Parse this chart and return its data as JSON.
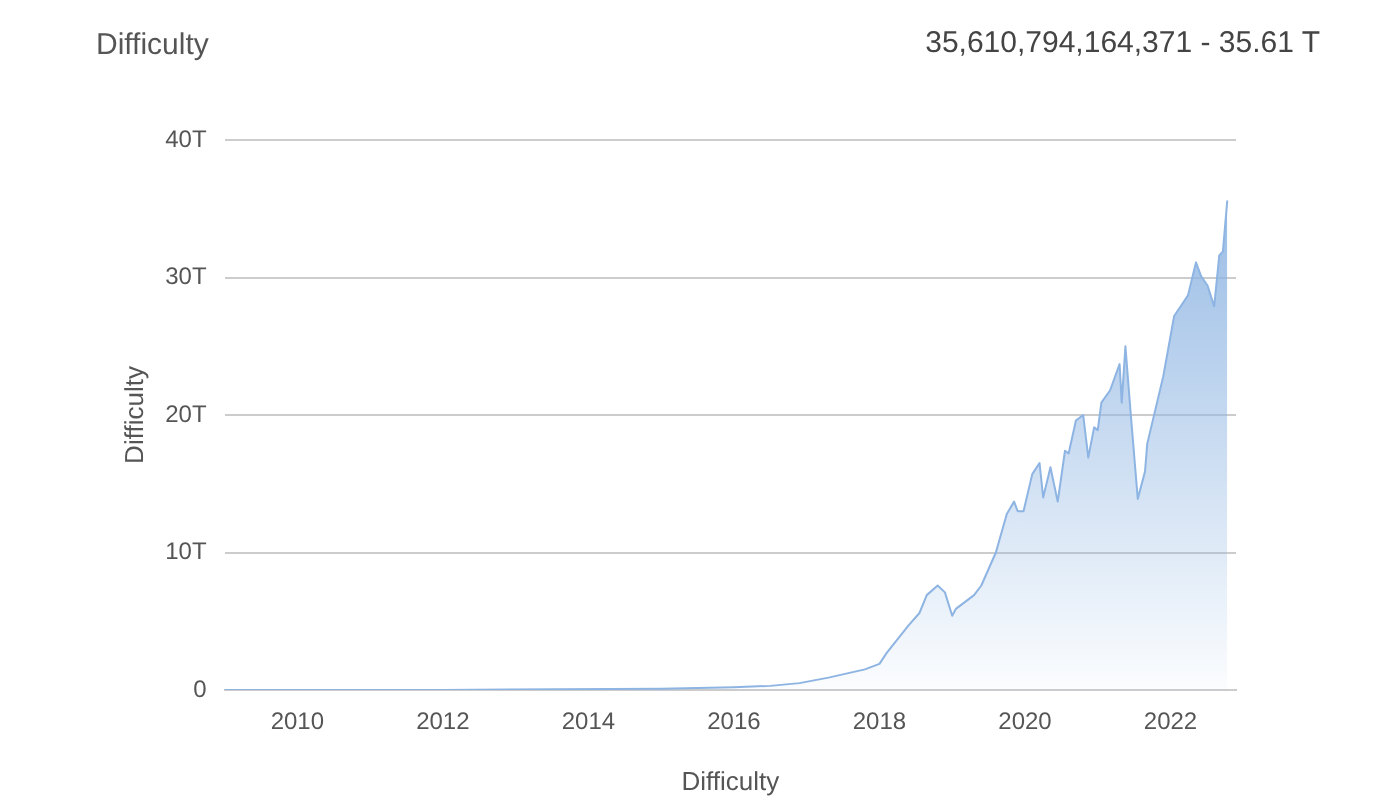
{
  "chart_data": {
    "type": "area",
    "title": "Difficulty",
    "xlabel": "Difficulty",
    "ylabel": "Difficulty",
    "annotations": [
      "35,610,794,164,371 - 35.61 T"
    ],
    "xlim": [
      2009,
      2022.9
    ],
    "xticks": [
      2010,
      2012,
      2014,
      2016,
      2018,
      2020,
      2022
    ],
    "ylim": [
      0,
      40
    ],
    "yticks": [
      0,
      {
        "value": 10,
        "label": "10T"
      },
      {
        "value": 20,
        "label": "20T"
      },
      {
        "value": 30,
        "label": "30T"
      },
      {
        "value": 40,
        "label": "40T"
      }
    ],
    "grid": "y",
    "legend": false,
    "marker": "none",
    "series": [
      {
        "color": "#8db4e2",
        "x": [
          2009,
          2012,
          2015,
          2016,
          2016.5,
          2016.9,
          2017.3,
          2017.8,
          2018,
          2018.1,
          2018.4,
          2018.55,
          2018.65,
          2018.8,
          2018.9,
          2019,
          2019.05,
          2019.3,
          2019.4,
          2019.6,
          2019.75,
          2019.85,
          2019.9,
          2019.98,
          2020.1,
          2020.2,
          2020.25,
          2020.35,
          2020.45,
          2020.55,
          2020.6,
          2020.7,
          2020.8,
          2020.87,
          2020.95,
          2021,
          2021.05,
          2021.17,
          2021.3,
          2021.33,
          2021.38,
          2021.45,
          2021.55,
          2021.65,
          2021.68,
          2021.9,
          2022.05,
          2022.14,
          2022.24,
          2022.35,
          2022.42,
          2022.51,
          2022.6,
          2022.67,
          2022.72,
          2022.78
        ],
        "values": [
          0,
          0,
          0.1,
          0.2,
          0.3,
          0.5,
          0.9,
          1.5,
          1.9,
          2.7,
          4.7,
          5.6,
          6.9,
          7.6,
          7.1,
          5.4,
          5.9,
          6.9,
          7.6,
          10,
          12.8,
          13.7,
          13,
          13,
          15.7,
          16.5,
          14,
          16.2,
          13.7,
          17.4,
          17.2,
          19.6,
          20,
          16.9,
          19.1,
          18.9,
          20.9,
          21.8,
          23.7,
          20.9,
          25,
          20.3,
          13.9,
          15.9,
          17.9,
          22.8,
          27.2,
          27.9,
          28.7,
          31.1,
          30.1,
          29.4,
          27.9,
          31.6,
          31.9,
          35.6
        ]
      }
    ]
  }
}
